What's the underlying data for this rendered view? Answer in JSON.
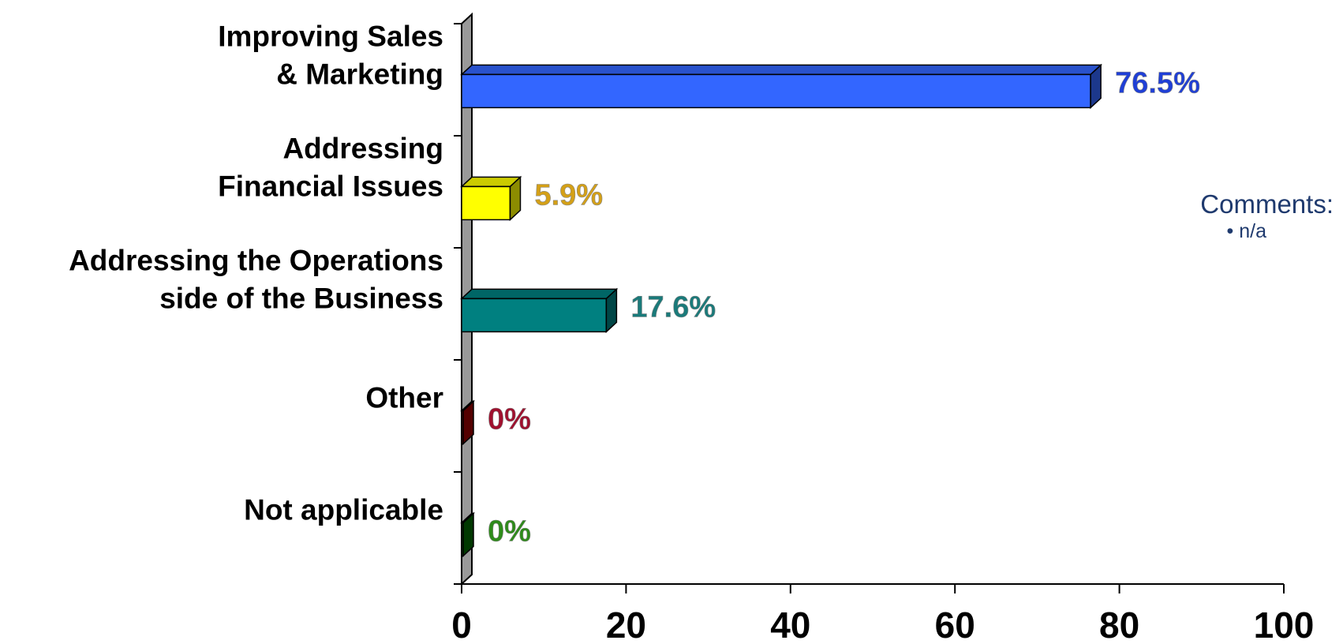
{
  "chart_data": {
    "type": "bar",
    "orientation": "horizontal",
    "categories": [
      [
        "Improving Sales",
        "& Marketing"
      ],
      [
        "Addressing",
        "Financial Issues"
      ],
      [
        "Addressing the Operations",
        "side of the Business"
      ],
      [
        "Other"
      ],
      [
        "Not applicable"
      ]
    ],
    "values": [
      76.5,
      5.9,
      17.6,
      0,
      0
    ],
    "value_labels": [
      "76.5%",
      "5.9%",
      "17.6%",
      "0%",
      "0%"
    ],
    "bar_colors": [
      "#3366FF",
      "#FFFF00",
      "#008080",
      "#990000",
      "#006600"
    ],
    "label_colors": [
      "#1F3FD6",
      "#D4A017",
      "#1A7A7A",
      "#A0102E",
      "#2E8B1A"
    ],
    "xlim": [
      0,
      100
    ],
    "xticks": [
      0,
      20,
      40,
      60,
      80,
      100
    ],
    "grid": false,
    "style": "3d"
  },
  "comments": {
    "title": "Comments:",
    "items": [
      "n/a"
    ]
  }
}
